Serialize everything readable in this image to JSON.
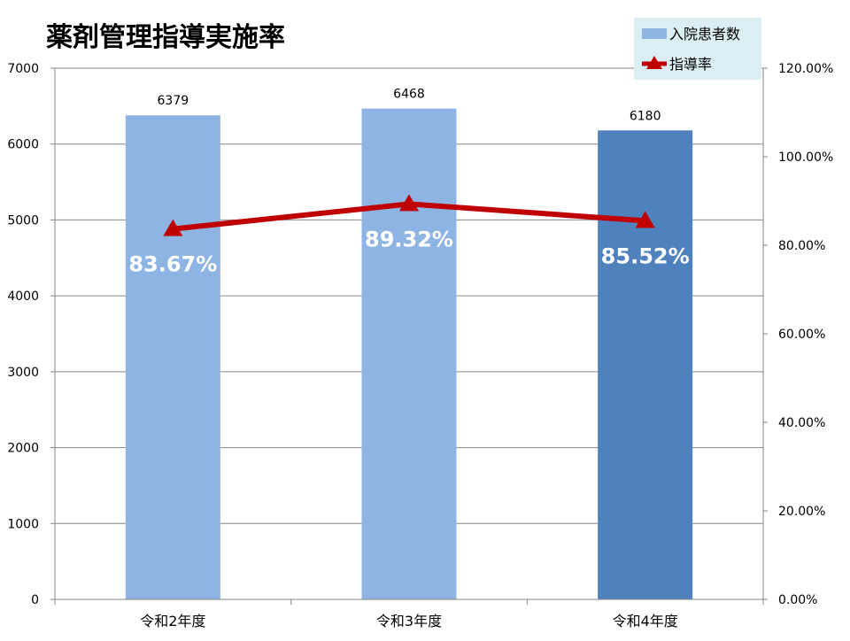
{
  "chart_data": {
    "type": "bar",
    "title": "薬剤管理指導実施率",
    "categories": [
      "令和2年度",
      "令和3年度",
      "令和4年度"
    ],
    "series": [
      {
        "name": "入院患者数",
        "type": "bar",
        "axis": "left",
        "values": [
          6379,
          6468,
          6180
        ],
        "value_labels": [
          "6379",
          "6468",
          "6180"
        ],
        "colors": [
          "#8EB4E3",
          "#8EB4E3",
          "#4F81BD"
        ]
      },
      {
        "name": "指導率",
        "type": "line",
        "axis": "right",
        "values": [
          83.67,
          89.32,
          85.52
        ],
        "value_labels": [
          "83.67%",
          "89.32%",
          "85.52%"
        ],
        "color": "#C00000",
        "marker": "triangle"
      }
    ],
    "y_left": {
      "min": 0,
      "max": 7000,
      "ticks": [
        "0",
        "1000",
        "2000",
        "3000",
        "4000",
        "5000",
        "6000",
        "7000"
      ]
    },
    "y_right": {
      "min": 0,
      "max": 120,
      "ticks": [
        "0.00%",
        "20.00%",
        "40.00%",
        "60.00%",
        "80.00%",
        "100.00%",
        "120.00%"
      ]
    },
    "grid": true,
    "legend": {
      "position": "top-right",
      "background": "#DBEEF4"
    }
  }
}
